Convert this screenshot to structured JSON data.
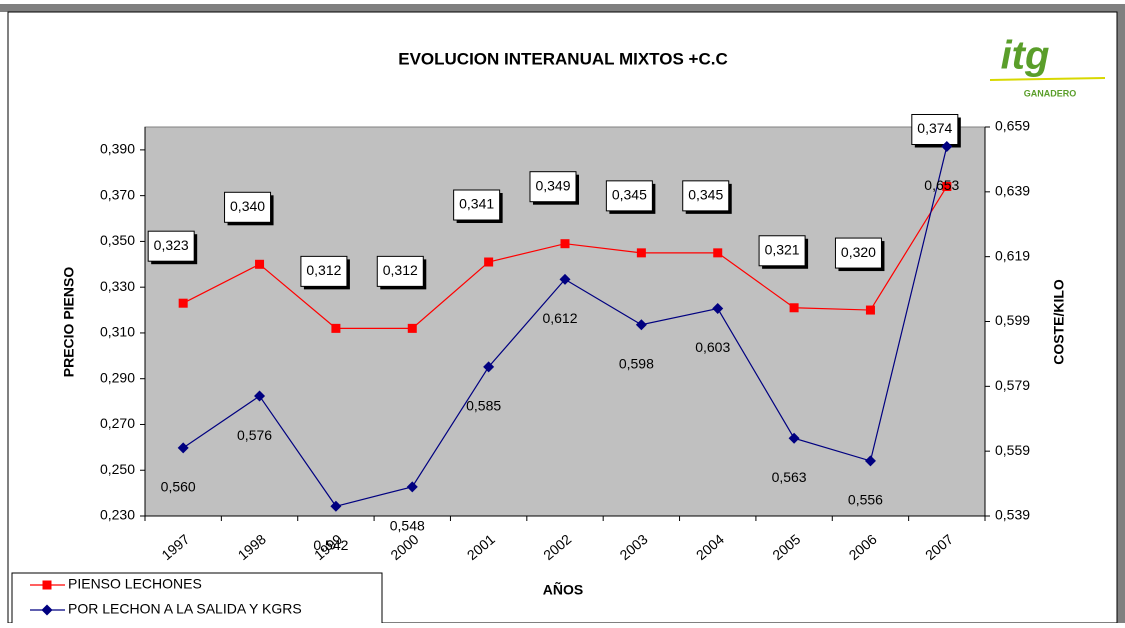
{
  "chart_data": {
    "type": "line",
    "title": "EVOLUCION INTERANUAL MIXTOS +C.C",
    "x_label": "AÑOS",
    "y_label": "PRECIO PIENSO",
    "y2_label": "COSTE/KILO",
    "categories": [
      "1997",
      "1998",
      "1999",
      "2000",
      "2001",
      "2002",
      "2003",
      "2004",
      "2005",
      "2006",
      "2007"
    ],
    "ylim": [
      0.23,
      0.4
    ],
    "yticks": [
      {
        "value": 0.23,
        "label": "0,230"
      },
      {
        "value": 0.25,
        "label": "0,250"
      },
      {
        "value": 0.27,
        "label": "0,270"
      },
      {
        "value": 0.29,
        "label": "0,290"
      },
      {
        "value": 0.31,
        "label": "0,310"
      },
      {
        "value": 0.33,
        "label": "0,330"
      },
      {
        "value": 0.35,
        "label": "0,350"
      },
      {
        "value": 0.37,
        "label": "0,370"
      },
      {
        "value": 0.39,
        "label": "0,390"
      }
    ],
    "y2lim": [
      0.539,
      0.659
    ],
    "y2ticks": [
      {
        "value": 0.539,
        "label": "0,539"
      },
      {
        "value": 0.559,
        "label": "0,559"
      },
      {
        "value": 0.579,
        "label": "0,579"
      },
      {
        "value": 0.599,
        "label": "0,599"
      },
      {
        "value": 0.619,
        "label": "0,619"
      },
      {
        "value": 0.639,
        "label": "0,639"
      },
      {
        "value": 0.659,
        "label": "0,659"
      }
    ],
    "grid": false,
    "legend": "bottom-left",
    "series": [
      {
        "name": "PIENSO LECHONES",
        "color": "#ff0000",
        "marker": "square",
        "values": [
          0.323,
          0.34,
          0.312,
          0.312,
          0.341,
          0.349,
          0.345,
          0.345,
          0.321,
          0.32,
          0.374
        ],
        "value_labels": [
          "0,323",
          "0,340",
          "0,312",
          "0,312",
          "0,341",
          "0,349",
          "0,345",
          "0,345",
          "0,321",
          "0,320",
          "0,374"
        ]
      },
      {
        "name": "POR LECHON A LA SALIDA Y KGRS",
        "color": "#000080",
        "marker": "diamond",
        "axis": "y2",
        "values": [
          0.56,
          0.576,
          0.542,
          0.548,
          0.585,
          0.612,
          0.598,
          0.603,
          0.563,
          0.556,
          0.653
        ],
        "value_labels": [
          "0,560",
          "0,576",
          "0,542",
          "0,548",
          "0,585",
          "0,612",
          "0,598",
          "0,603",
          "0,563",
          "0,556",
          "0,653"
        ]
      }
    ]
  },
  "logo": {
    "text": "itg",
    "subtext": "GANADERO"
  }
}
